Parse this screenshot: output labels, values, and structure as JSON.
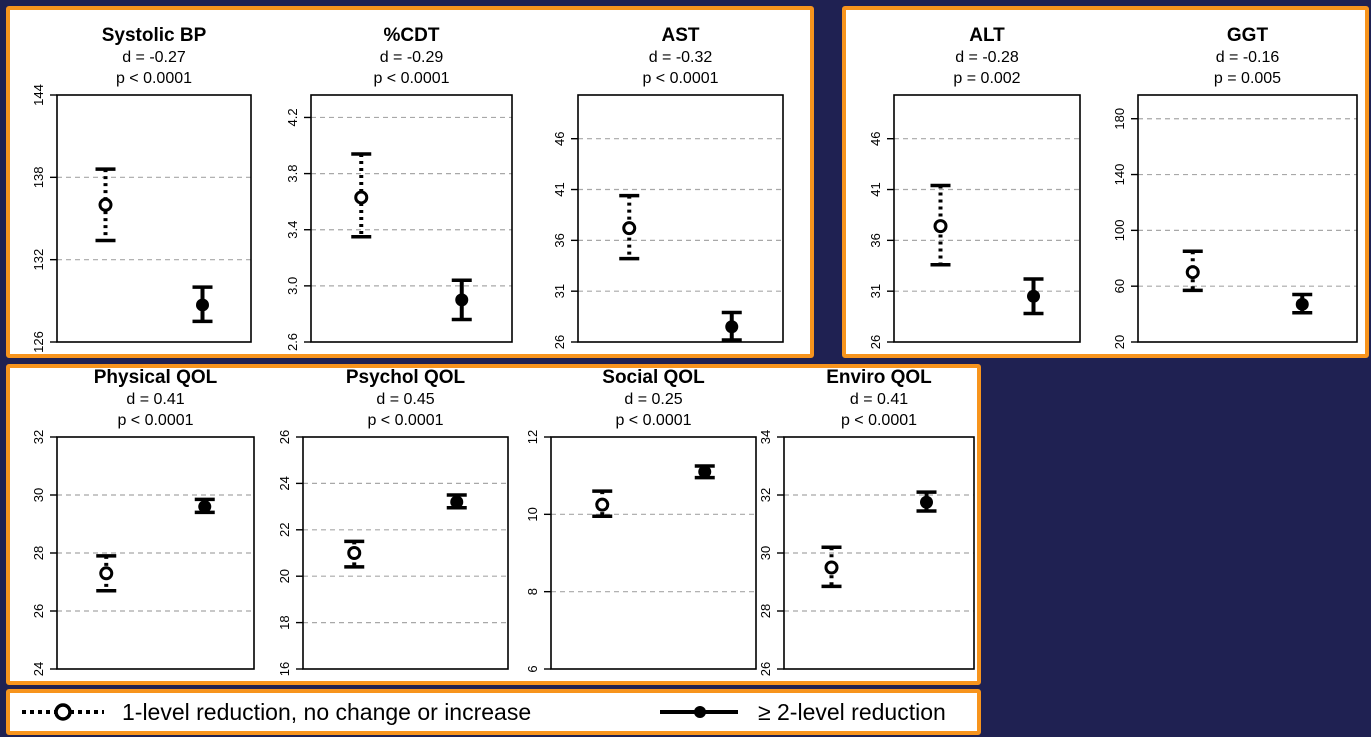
{
  "colors": {
    "background": "#1f2152",
    "frame": "#f7941d",
    "text": "#000000",
    "grid": "#a8a8a8"
  },
  "chart_data": [
    {
      "type": "scatter",
      "title": "Systolic BP",
      "d_text": "d = -0.27",
      "p_text": "p < 0.0001",
      "ylim": [
        126,
        144
      ],
      "yticks": [
        "126",
        "132",
        "138",
        "144"
      ],
      "gridlines": [
        132,
        138
      ],
      "series": [
        {
          "style": "open-dotted",
          "value": 136.0,
          "lower": 133.4,
          "upper": 138.6
        },
        {
          "style": "filled-solid",
          "value": 128.7,
          "lower": 127.5,
          "upper": 130.0
        }
      ]
    },
    {
      "type": "scatter",
      "title": "%CDT",
      "d_text": "d = -0.29",
      "p_text": "p < 0.0001",
      "ylim": [
        2.6,
        4.36
      ],
      "yticks": [
        "2.6",
        "3.0",
        "3.4",
        "3.8",
        "4.2"
      ],
      "gridlines": [
        3.0,
        3.4,
        3.8,
        4.2
      ],
      "series": [
        {
          "style": "open-dotted",
          "value": 3.63,
          "lower": 3.35,
          "upper": 3.94
        },
        {
          "style": "filled-solid",
          "value": 2.9,
          "lower": 2.76,
          "upper": 3.04
        }
      ]
    },
    {
      "type": "scatter",
      "title": "AST",
      "d_text": "d = -0.32",
      "p_text": "p < 0.0001",
      "ylim": [
        26,
        50.3
      ],
      "yticks": [
        "26",
        "31",
        "36",
        "41",
        "46"
      ],
      "gridlines": [
        31,
        36,
        41,
        46
      ],
      "series": [
        {
          "style": "open-dotted",
          "value": 37.2,
          "lower": 34.2,
          "upper": 40.4
        },
        {
          "style": "filled-solid",
          "value": 27.5,
          "lower": 26.2,
          "upper": 28.9
        }
      ]
    },
    {
      "type": "scatter",
      "title": "ALT",
      "d_text": "d = -0.28",
      "p_text": "p = 0.002",
      "ylim": [
        26,
        50.3
      ],
      "yticks": [
        "26",
        "31",
        "36",
        "41",
        "46"
      ],
      "gridlines": [
        31,
        36,
        41,
        46
      ],
      "series": [
        {
          "style": "open-dotted",
          "value": 37.4,
          "lower": 33.6,
          "upper": 41.4
        },
        {
          "style": "filled-solid",
          "value": 30.5,
          "lower": 28.8,
          "upper": 32.2
        }
      ]
    },
    {
      "type": "scatter",
      "title": "GGT",
      "d_text": "d = -0.16",
      "p_text": "p = 0.005",
      "ylim": [
        20,
        197
      ],
      "yticks": [
        "20",
        "60",
        "100",
        "140",
        "180"
      ],
      "gridlines": [
        60,
        100,
        140,
        180
      ],
      "series": [
        {
          "style": "open-dotted",
          "value": 70,
          "lower": 57,
          "upper": 85
        },
        {
          "style": "filled-solid",
          "value": 47,
          "lower": 41,
          "upper": 54
        }
      ]
    },
    {
      "type": "scatter",
      "title": "Physical QOL",
      "d_text": "d = 0.41",
      "p_text": "p < 0.0001",
      "ylim": [
        24,
        32
      ],
      "yticks": [
        "24",
        "26",
        "28",
        "30",
        "32"
      ],
      "gridlines": [
        26,
        28,
        30
      ],
      "series": [
        {
          "style": "open-dotted",
          "value": 27.3,
          "lower": 26.7,
          "upper": 27.9
        },
        {
          "style": "filled-solid",
          "value": 29.6,
          "lower": 29.4,
          "upper": 29.85
        }
      ]
    },
    {
      "type": "scatter",
      "title": "Psychol QOL",
      "d_text": "d = 0.45",
      "p_text": "p < 0.0001",
      "ylim": [
        16,
        26
      ],
      "yticks": [
        "16",
        "18",
        "20",
        "22",
        "24",
        "26"
      ],
      "gridlines": [
        18,
        20,
        22,
        24
      ],
      "series": [
        {
          "style": "open-dotted",
          "value": 21.0,
          "lower": 20.4,
          "upper": 21.5
        },
        {
          "style": "filled-solid",
          "value": 23.2,
          "lower": 22.95,
          "upper": 23.5
        }
      ]
    },
    {
      "type": "scatter",
      "title": "Social QOL",
      "d_text": "d = 0.25",
      "p_text": "p < 0.0001",
      "ylim": [
        6,
        12
      ],
      "yticks": [
        "6",
        "8",
        "10",
        "12"
      ],
      "gridlines": [
        8,
        10
      ],
      "series": [
        {
          "style": "open-dotted",
          "value": 10.25,
          "lower": 9.95,
          "upper": 10.6
        },
        {
          "style": "filled-solid",
          "value": 11.1,
          "lower": 10.95,
          "upper": 11.25
        }
      ]
    },
    {
      "type": "scatter",
      "title": "Enviro QOL",
      "d_text": "d = 0.41",
      "p_text": "p < 0.0001",
      "ylim": [
        26,
        34
      ],
      "yticks": [
        "26",
        "28",
        "30",
        "32",
        "34"
      ],
      "gridlines": [
        28,
        30,
        32
      ],
      "series": [
        {
          "style": "open-dotted",
          "value": 29.5,
          "lower": 28.85,
          "upper": 30.2
        },
        {
          "style": "filled-solid",
          "value": 31.75,
          "lower": 31.45,
          "upper": 32.1
        }
      ]
    }
  ],
  "legend": {
    "open_label": "1-level reduction, no change or increase",
    "filled_label": "≥ 2-level reduction"
  }
}
